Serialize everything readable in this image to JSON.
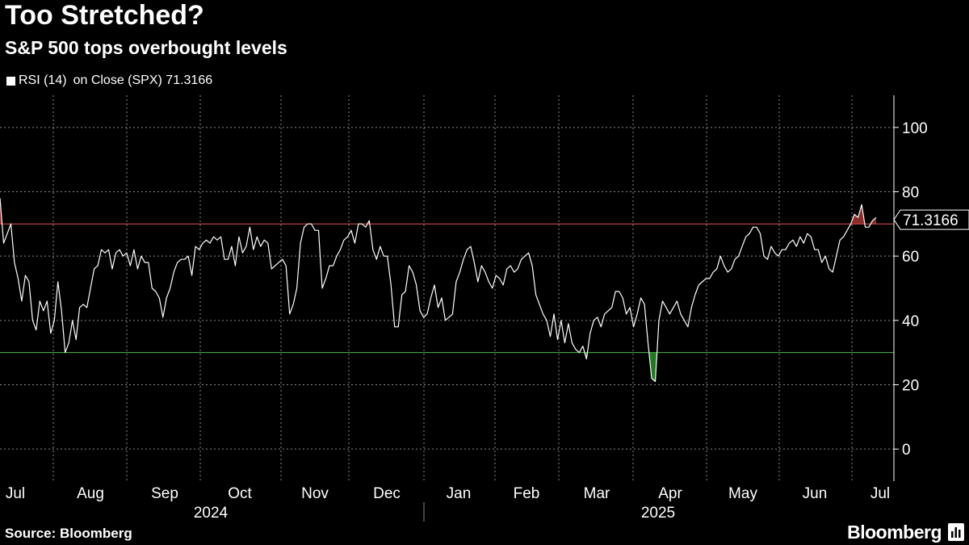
{
  "title": "Too Stretched?",
  "subtitle": "S&P 500 tops overbought levels",
  "legend": {
    "name": "RSI (14)",
    "label": "on Close (SPX) 71.3166"
  },
  "source": "Source: Bloomberg",
  "brand": "Bloomberg",
  "colors": {
    "background": "#000000",
    "line": "#ffffff",
    "overbought": "#e05050",
    "oversold": "#4cb84c",
    "overbought_fill": "#8a2a2a",
    "oversold_fill": "#1f7a1f",
    "grid": "#8a8a8a"
  },
  "chart_data": {
    "type": "line",
    "title": "Too Stretched?",
    "subtitle": "S&P 500 tops overbought levels",
    "series": [
      {
        "name": "RSI (14) on Close (SPX)",
        "last_value": "71.3166",
        "values": [
          78,
          64,
          67,
          70,
          58,
          53,
          46,
          54,
          52,
          40,
          37,
          46,
          43,
          46,
          36,
          40,
          52,
          43,
          30,
          33,
          40,
          34,
          44,
          45,
          44,
          50,
          56,
          57,
          62,
          61,
          62,
          56,
          61,
          62,
          60,
          61,
          57,
          62,
          56,
          60,
          58,
          58,
          50,
          49,
          47,
          41,
          47,
          50,
          55,
          58,
          59,
          59,
          60,
          54,
          63,
          62,
          64,
          65,
          64,
          66,
          65,
          66,
          59,
          59,
          63,
          57,
          66,
          61,
          63,
          69,
          62,
          66,
          63,
          65,
          64,
          56,
          57,
          58,
          59,
          57,
          42,
          45,
          50,
          64,
          69,
          70,
          70,
          68,
          68,
          50,
          53,
          57,
          57,
          60,
          62,
          65,
          66,
          68,
          64,
          70,
          70,
          69,
          71,
          62,
          59,
          63,
          60,
          60,
          51,
          38,
          38,
          48,
          49,
          57,
          55,
          51,
          43,
          41,
          42,
          47,
          51,
          44,
          47,
          40,
          41,
          42,
          52,
          55,
          59,
          62,
          63,
          58,
          52,
          57,
          55,
          52,
          50,
          54,
          53,
          51,
          56,
          57,
          55,
          56,
          59,
          60,
          61,
          57,
          48,
          45,
          42,
          40,
          35,
          42,
          34,
          40,
          33,
          39,
          33,
          31,
          30,
          32,
          28,
          36,
          40,
          41,
          38,
          42,
          43,
          44,
          49,
          49,
          47,
          42,
          44,
          38,
          42,
          47,
          45,
          33,
          22,
          21,
          40,
          46,
          44,
          42,
          44,
          46,
          42,
          40,
          38,
          44,
          48,
          51,
          52,
          53,
          53,
          55,
          56,
          60,
          57,
          55,
          56,
          59,
          60,
          63,
          66,
          67,
          69,
          69,
          67,
          60,
          59,
          63,
          61,
          60,
          62,
          62,
          64,
          65,
          63,
          66,
          64,
          67,
          66,
          62,
          62,
          58,
          60,
          56,
          55,
          60,
          65,
          66,
          68,
          70,
          73,
          72,
          76,
          69,
          69,
          71,
          72
        ]
      }
    ],
    "ylim": [
      -10,
      110
    ],
    "yticks": [
      "0",
      "20",
      "40",
      "60",
      "80",
      "100"
    ],
    "reference_lines": [
      {
        "label": "overbought",
        "value": 70
      },
      {
        "label": "oversold",
        "value": 30
      }
    ],
    "months": [
      "Jul",
      "Aug",
      "Sep",
      "Oct",
      "Nov",
      "Dec",
      "Jan",
      "Feb",
      "Mar",
      "Apr",
      "May",
      "Jun",
      "Jul"
    ],
    "years": [
      "2024",
      "2025"
    ],
    "last_value_label": "71.3166",
    "grid": true
  }
}
